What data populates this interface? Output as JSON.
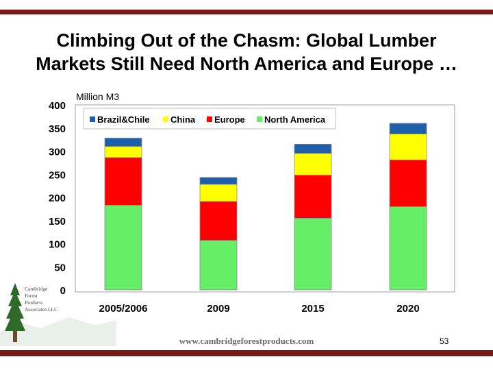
{
  "slide": {
    "title_line1": "Climbing Out of the Chasm: Global Lumber",
    "title_line2": "Markets Still Need North America and Europe …",
    "website": "www.cambridgeforestproducts.com",
    "page_number": "53",
    "logo": {
      "line1": "Cambridge",
      "line2": "Forest",
      "line3": "Products",
      "line4": "Associates LLC"
    }
  },
  "chart_data": {
    "type": "bar",
    "stacked": true,
    "title": "",
    "ylabel": "Million M3",
    "xlabel": "",
    "ylim": [
      0,
      400
    ],
    "yticks": [
      "0",
      "50",
      "100",
      "150",
      "200",
      "250",
      "300",
      "350",
      "400"
    ],
    "categories": [
      "2005/2006",
      "2009",
      "2015",
      "2020"
    ],
    "series": [
      {
        "name": "North America",
        "color": "#66ee66",
        "values": [
          183,
          107,
          155,
          180
        ]
      },
      {
        "name": "Europe",
        "color": "#ff0000",
        "values": [
          103,
          84,
          93,
          101
        ]
      },
      {
        "name": "China",
        "color": "#ffff00",
        "values": [
          24,
          37,
          47,
          56
        ]
      },
      {
        "name": "Brazil&Chile",
        "color": "#1f5faa",
        "values": [
          18,
          15,
          20,
          23
        ]
      }
    ],
    "legend_order": [
      "Brazil&Chile",
      "China",
      "Europe",
      "North America"
    ],
    "legend_position": "top-left",
    "grid": false
  }
}
